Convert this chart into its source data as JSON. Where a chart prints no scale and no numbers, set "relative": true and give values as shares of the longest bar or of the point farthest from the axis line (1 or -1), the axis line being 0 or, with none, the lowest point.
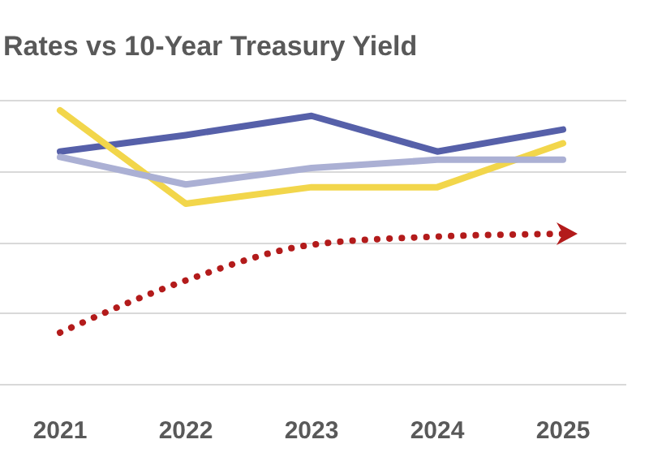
{
  "chart_data": {
    "type": "line",
    "title": "Rates vs 10-Year Treasury Yield",
    "relative": true,
    "grid": "y",
    "categories": [
      "2021",
      "2022",
      "2023",
      "2024",
      "2025"
    ],
    "series": [
      {
        "color": "#5660a9",
        "values": [
          0.85,
          0.91,
          0.98,
          0.85,
          0.93
        ]
      },
      {
        "color": "#f2d64b",
        "values": [
          1.0,
          0.66,
          0.72,
          0.72,
          0.88
        ]
      },
      {
        "color": "#abb0d4",
        "values": [
          0.83,
          0.73,
          0.79,
          0.82,
          0.82
        ]
      },
      {
        "color": "#b31b1b",
        "values": [
          0.19,
          0.38,
          0.51,
          0.54,
          0.55
        ],
        "line_style": "dotted"
      }
    ]
  }
}
